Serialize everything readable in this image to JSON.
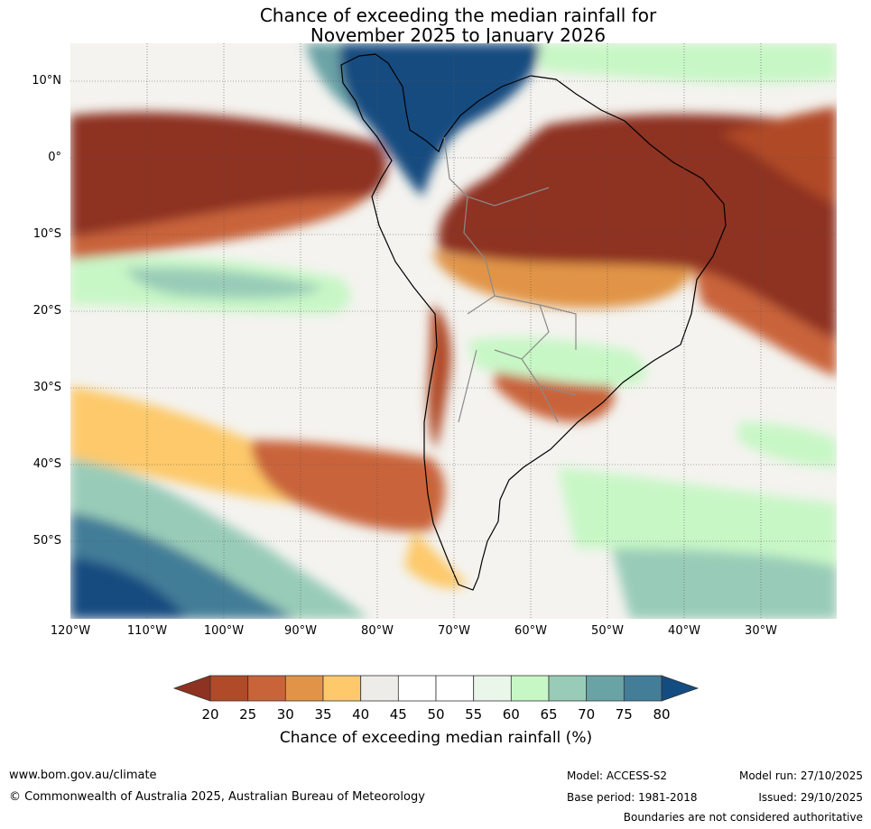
{
  "title": {
    "line1": "Chance of exceeding the median rainfall for",
    "line2": "November 2025 to January 2026"
  },
  "map": {
    "lat_labels": [
      "10°N",
      "0°",
      "10°S",
      "20°S",
      "30°S",
      "40°S",
      "50°S"
    ],
    "lon_labels": [
      "120°W",
      "110°W",
      "100°W",
      "90°W",
      "80°W",
      "70°W",
      "60°W",
      "50°W",
      "40°W",
      "30°W"
    ]
  },
  "colorbar": {
    "ticks": [
      "20",
      "25",
      "30",
      "35",
      "40",
      "45",
      "50",
      "55",
      "60",
      "65",
      "70",
      "75",
      "80"
    ],
    "colors": [
      "#8e3321",
      "#b04a28",
      "#c9633a",
      "#e19447",
      "#fdc96b",
      "#eeece8",
      "#ffffff",
      "#ffffff",
      "#eaf6ea",
      "#c8f7c6",
      "#99ccb8",
      "#6aa3a6",
      "#437d98",
      "#134c80"
    ],
    "label": "Chance of exceeding median rainfall (%)"
  },
  "footer": {
    "url": "www.bom.gov.au/climate",
    "copyright": "© Commonwealth of Australia 2025, Australian Bureau of Meteorology",
    "model": "Model: ACCESS-S2",
    "base_period": "Base period: 1981-2018",
    "model_run": "Model run: 27/10/2025",
    "issued": "Issued: 29/10/2025",
    "boundaries": "Boundaries are not considered authoritative"
  }
}
